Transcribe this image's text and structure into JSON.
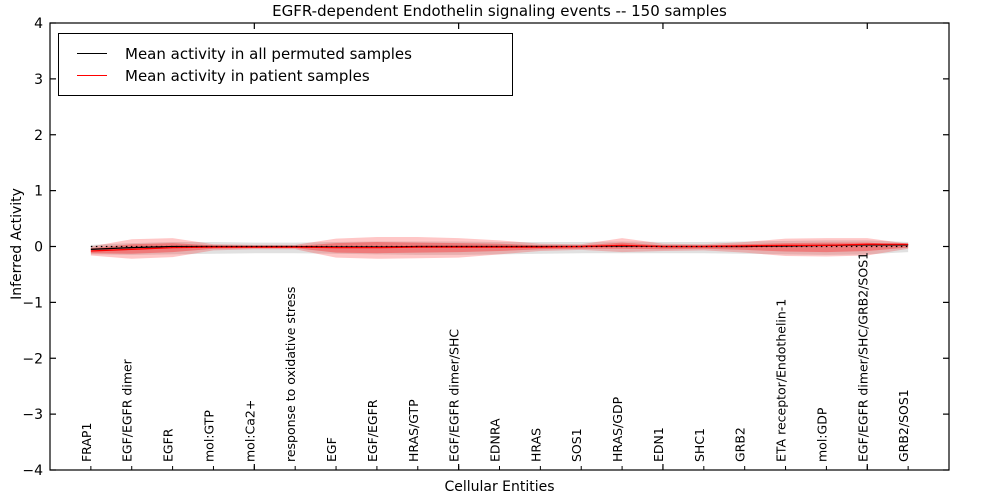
{
  "chart_data": {
    "type": "area",
    "title": "EGFR-dependent Endothelin signaling events -- 150 samples",
    "xlabel": "Cellular Entities",
    "ylabel": "Inferred Activity",
    "ylim": [
      -4,
      4
    ],
    "yticks": [
      4,
      3,
      2,
      1,
      0,
      -1,
      -2,
      -3,
      -4
    ],
    "ytick_labels": [
      "4",
      "3",
      "2",
      "1",
      "0",
      "−1",
      "−2",
      "−3",
      "−4"
    ],
    "x_major_ticks": [
      5,
      10,
      15,
      20
    ],
    "grid": false,
    "legend_position": "upper-left",
    "categories": [
      "FRAP1",
      "EGF/EGFR dimer",
      "EGFR",
      "mol:GTP",
      "mol:Ca2+",
      "response to oxidative stress",
      "EGF",
      "EGF/EGFR",
      "HRAS/GTP",
      "EGF/EGFR dimer/SHC",
      "EDNRA",
      "HRAS",
      "SOS1",
      "HRAS/GDP",
      "EDN1",
      "SHC1",
      "GRB2",
      "ETA receptor/Endothelin-1",
      "mol:GDP",
      "EGF/EGFR dimer/SHC/GRB2/SOS1",
      "GRB2/SOS1"
    ],
    "series": [
      {
        "name": "Mean activity in all permuted samples",
        "color": "#000000",
        "values": [
          -0.05,
          -0.02,
          0.0,
          0.0,
          0.0,
          0.0,
          -0.01,
          -0.01,
          0.0,
          0.0,
          0.0,
          0.0,
          0.0,
          0.01,
          0.0,
          0.0,
          0.0,
          0.01,
          0.02,
          0.03,
          0.03
        ]
      },
      {
        "name": "Mean activity in patient samples",
        "color": "#ff0000",
        "values": [
          -0.08,
          -0.05,
          -0.02,
          -0.01,
          -0.01,
          -0.01,
          -0.02,
          -0.02,
          -0.01,
          -0.01,
          -0.01,
          -0.01,
          0.0,
          0.02,
          0.0,
          0.0,
          0.01,
          0.02,
          0.02,
          0.04,
          0.04
        ]
      }
    ],
    "bands": [
      {
        "name": "permuted-spread",
        "color": "#aaaaaa",
        "opacity": 0.35,
        "upper": [
          0.03,
          0.06,
          0.08,
          0.08,
          0.07,
          0.07,
          0.08,
          0.09,
          0.09,
          0.09,
          0.08,
          0.08,
          0.08,
          0.09,
          0.08,
          0.08,
          0.09,
          0.1,
          0.11,
          0.11,
          0.08
        ],
        "lower": [
          -0.14,
          -0.15,
          -0.14,
          -0.13,
          -0.12,
          -0.12,
          -0.13,
          -0.14,
          -0.15,
          -0.15,
          -0.14,
          -0.13,
          -0.12,
          -0.12,
          -0.12,
          -0.12,
          -0.13,
          -0.14,
          -0.15,
          -0.14,
          -0.1
        ]
      },
      {
        "name": "patient-spread-outer",
        "color": "#ff0000",
        "opacity": 0.22,
        "upper": [
          0.0,
          0.13,
          0.15,
          0.04,
          0.03,
          0.03,
          0.14,
          0.17,
          0.17,
          0.15,
          0.11,
          0.05,
          0.04,
          0.15,
          0.05,
          0.04,
          0.08,
          0.14,
          0.15,
          0.15,
          0.05
        ],
        "lower": [
          -0.16,
          -0.22,
          -0.19,
          -0.07,
          -0.05,
          -0.05,
          -0.2,
          -0.22,
          -0.21,
          -0.2,
          -0.14,
          -0.08,
          -0.06,
          -0.1,
          -0.08,
          -0.07,
          -0.11,
          -0.17,
          -0.18,
          -0.16,
          -0.04
        ]
      },
      {
        "name": "patient-spread-inner",
        "color": "#ff0000",
        "opacity": 0.3,
        "upper": [
          -0.03,
          0.04,
          0.06,
          0.02,
          0.01,
          0.01,
          0.06,
          0.08,
          0.07,
          0.06,
          0.05,
          0.02,
          0.02,
          0.07,
          0.02,
          0.02,
          0.04,
          0.06,
          0.07,
          0.07,
          0.03
        ],
        "lower": [
          -0.12,
          -0.13,
          -0.1,
          -0.04,
          -0.03,
          -0.03,
          -0.11,
          -0.12,
          -0.11,
          -0.1,
          -0.08,
          -0.05,
          -0.04,
          -0.04,
          -0.05,
          -0.04,
          -0.06,
          -0.09,
          -0.1,
          -0.08,
          -0.02
        ]
      }
    ],
    "zero_line": {
      "value": 0,
      "color": "#000000",
      "style": "dotted"
    }
  }
}
